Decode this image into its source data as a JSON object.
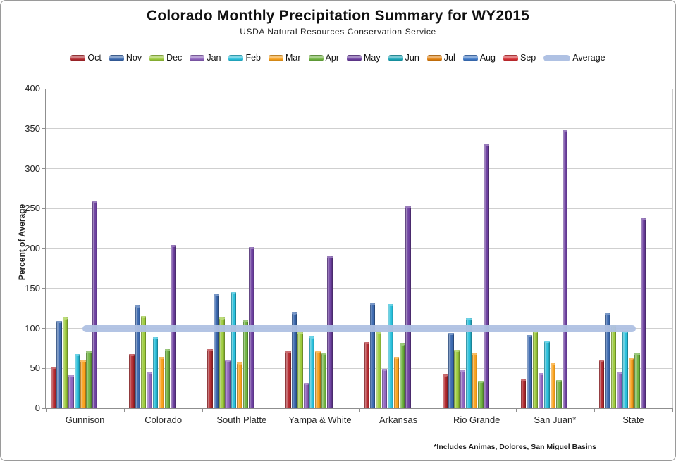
{
  "header": {
    "title": "Colorado Monthly Precipitation Summary for WY2015",
    "subtitle": "USDA Natural Resources Conservation Service"
  },
  "footnote": "*Includes Animas, Dolores, San Miguel Basins",
  "chart_data": {
    "type": "bar",
    "title": "Colorado Monthly Precipitation Summary for WY2015",
    "subtitle": "USDA Natural Resources Conservation Service",
    "xlabel": "",
    "ylabel": "Percent of Average",
    "ylim": [
      0,
      400
    ],
    "ytick_step": 50,
    "grid": true,
    "legend_position": "top",
    "categories": [
      "Gunnison",
      "Colorado",
      "South Platte",
      "Yampa & White",
      "Arkansas",
      "Rio Grande",
      "San Juan*",
      "State"
    ],
    "series": [
      {
        "name": "Oct",
        "color": "#b2292e",
        "values": [
          52,
          68,
          74,
          71,
          83,
          42,
          36,
          61
        ]
      },
      {
        "name": "Nov",
        "color": "#3a68ae",
        "values": [
          109,
          129,
          143,
          120,
          131,
          94,
          92,
          119
        ]
      },
      {
        "name": "Dec",
        "color": "#9ccb3b",
        "values": [
          114,
          115,
          114,
          95,
          96,
          73,
          97,
          104
        ]
      },
      {
        "name": "Jan",
        "color": "#8e63be",
        "values": [
          41,
          45,
          61,
          32,
          49,
          48,
          44,
          45
        ]
      },
      {
        "name": "Feb",
        "color": "#27bfdb",
        "values": [
          68,
          89,
          145,
          90,
          130,
          113,
          85,
          97
        ]
      },
      {
        "name": "Mar",
        "color": "#f9a01b",
        "values": [
          60,
          64,
          57,
          72,
          64,
          69,
          56,
          63
        ]
      },
      {
        "name": "Apr",
        "color": "#6eb33f",
        "values": [
          71,
          74,
          110,
          70,
          81,
          34,
          35,
          69
        ]
      },
      {
        "name": "May",
        "color": "#6b3e9e",
        "values": [
          260,
          204,
          202,
          190,
          253,
          330,
          349,
          238
        ]
      },
      {
        "name": "Jun",
        "color": "#1aa7b8",
        "values": [
          0,
          0,
          0,
          0,
          0,
          0,
          0,
          0
        ]
      },
      {
        "name": "Jul",
        "color": "#e2800d",
        "values": [
          0,
          0,
          0,
          0,
          0,
          0,
          0,
          0
        ]
      },
      {
        "name": "Aug",
        "color": "#3e79c8",
        "values": [
          0,
          0,
          0,
          0,
          0,
          0,
          0,
          0
        ]
      },
      {
        "name": "Sep",
        "color": "#d62f34",
        "values": [
          0,
          0,
          0,
          0,
          0,
          0,
          0,
          0
        ]
      }
    ],
    "average_line": {
      "name": "Average",
      "color": "#afc1e3",
      "value": 100
    }
  }
}
